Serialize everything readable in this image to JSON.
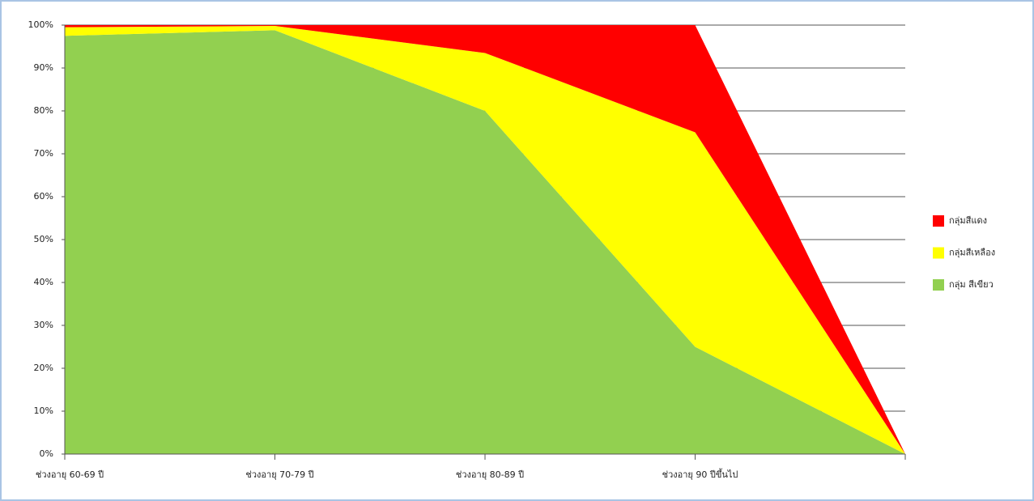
{
  "chart_data": {
    "type": "area_stacked",
    "categories": [
      "ช่วงอายุ 60-69 ปี",
      "ช่วงอายุ 70-79 ปี",
      "ช่วงอายุ 80-89 ปี",
      "ช่วงอายุ 90 ปีขึ้นไป",
      null
    ],
    "series": [
      {
        "name": "กลุ่ม สีเขียว",
        "color": "#92d050",
        "values": [
          97.5,
          98.8,
          80,
          25,
          0
        ]
      },
      {
        "name": "กลุ่มสีเหลือง",
        "color": "#ffff00",
        "values": [
          2,
          1,
          13.5,
          50,
          0
        ]
      },
      {
        "name": "กลุ่มสีแดง",
        "color": "#ff0000",
        "values": [
          0.5,
          0.2,
          6.5,
          25,
          0
        ]
      }
    ],
    "ylim": [
      0,
      100
    ],
    "yticks": [
      {
        "value": 0,
        "label": "0%"
      },
      {
        "value": 10,
        "label": "10%"
      },
      {
        "value": 20,
        "label": "20%"
      },
      {
        "value": 30,
        "label": "30%"
      },
      {
        "value": 40,
        "label": "40%"
      },
      {
        "value": 50,
        "label": "50%"
      },
      {
        "value": 60,
        "label": "60%"
      },
      {
        "value": 70,
        "label": "70%"
      },
      {
        "value": 80,
        "label": "80%"
      },
      {
        "value": 90,
        "label": "90%"
      },
      {
        "value": 100,
        "label": "100%"
      }
    ],
    "grid": true,
    "legend": "right"
  }
}
